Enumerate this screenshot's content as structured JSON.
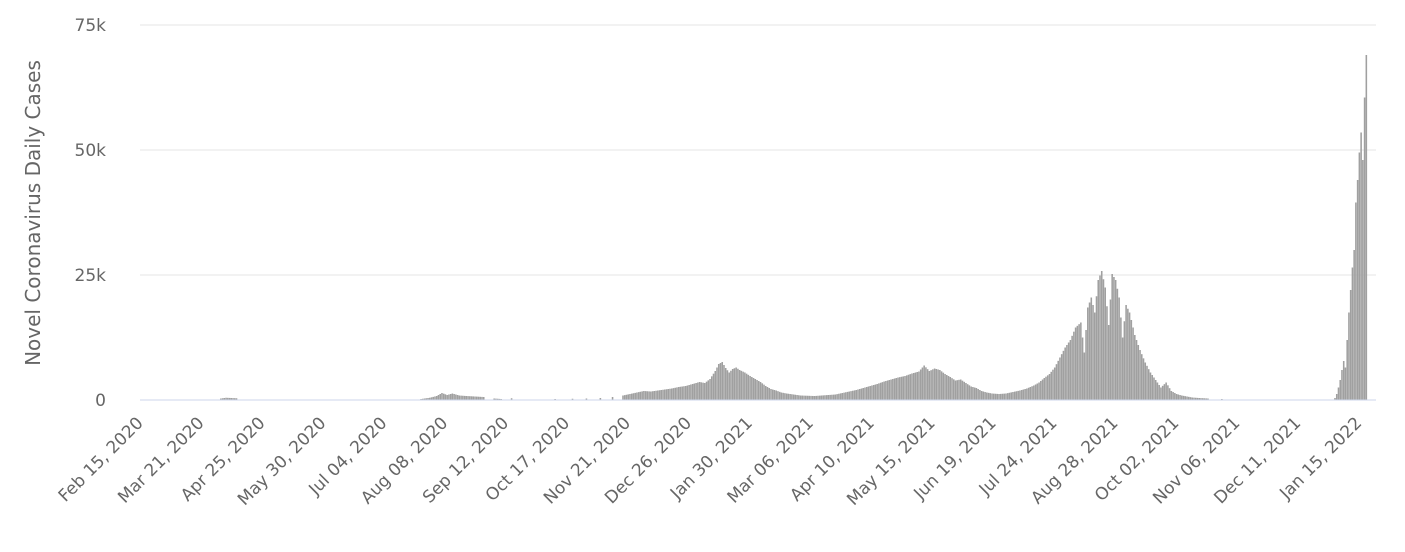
{
  "chart_data": {
    "type": "bar",
    "title": "",
    "ylabel": "Novel Coronavirus Daily Cases",
    "xlabel": "",
    "ylim": [
      0,
      75000
    ],
    "yticks": [
      {
        "value": 0,
        "label": "0"
      },
      {
        "value": 25000,
        "label": "25k"
      },
      {
        "value": 50000,
        "label": "50k"
      },
      {
        "value": 75000,
        "label": "75k"
      }
    ],
    "x_range": [
      "2020-02-15",
      "2022-01-25"
    ],
    "xticks": [
      {
        "date": "2020-02-15",
        "label": "Feb 15, 2020"
      },
      {
        "date": "2020-03-21",
        "label": "Mar 21, 2020"
      },
      {
        "date": "2020-04-25",
        "label": "Apr 25, 2020"
      },
      {
        "date": "2020-05-30",
        "label": "May 30, 2020"
      },
      {
        "date": "2020-07-04",
        "label": "Jul 04, 2020"
      },
      {
        "date": "2020-08-08",
        "label": "Aug 08, 2020"
      },
      {
        "date": "2020-09-12",
        "label": "Sep 12, 2020"
      },
      {
        "date": "2020-10-17",
        "label": "Oct 17, 2020"
      },
      {
        "date": "2020-11-21",
        "label": "Nov 21, 2020"
      },
      {
        "date": "2020-12-26",
        "label": "Dec 26, 2020"
      },
      {
        "date": "2021-01-30",
        "label": "Jan 30, 2021"
      },
      {
        "date": "2021-03-06",
        "label": "Mar 06, 2021"
      },
      {
        "date": "2021-04-10",
        "label": "Apr 10, 2021"
      },
      {
        "date": "2021-05-15",
        "label": "May 15, 2021"
      },
      {
        "date": "2021-06-19",
        "label": "Jun 19, 2021"
      },
      {
        "date": "2021-07-24",
        "label": "Jul 24, 2021"
      },
      {
        "date": "2021-08-28",
        "label": "Aug 28, 2021"
      },
      {
        "date": "2021-10-02",
        "label": "Oct 02, 2021"
      },
      {
        "date": "2021-11-06",
        "label": "Nov 06, 2021"
      },
      {
        "date": "2021-12-11",
        "label": "Dec 11, 2021"
      },
      {
        "date": "2022-01-15",
        "label": "Jan 15, 2022"
      }
    ],
    "series": [
      {
        "color": "#a0a0a0",
        "points": [
          {
            "date": "2020-04-01",
            "value": 300
          },
          {
            "date": "2020-04-04",
            "value": 450
          },
          {
            "date": "2020-04-07",
            "value": 400
          },
          {
            "date": "2020-04-10",
            "value": 350
          },
          {
            "date": "2020-07-25",
            "value": 200
          },
          {
            "date": "2020-07-30",
            "value": 450
          },
          {
            "date": "2020-08-03",
            "value": 800
          },
          {
            "date": "2020-08-06",
            "value": 1400
          },
          {
            "date": "2020-08-09",
            "value": 1000
          },
          {
            "date": "2020-08-12",
            "value": 1300
          },
          {
            "date": "2020-08-16",
            "value": 900
          },
          {
            "date": "2020-08-20",
            "value": 800
          },
          {
            "date": "2020-08-25",
            "value": 700
          },
          {
            "date": "2020-08-30",
            "value": 600
          },
          {
            "date": "2020-09-05",
            "value": 300
          },
          {
            "date": "2020-09-09",
            "value": 200
          },
          {
            "date": "2020-09-15",
            "value": 350
          },
          {
            "date": "2020-10-10",
            "value": 200
          },
          {
            "date": "2020-10-20",
            "value": 250
          },
          {
            "date": "2020-10-28",
            "value": 300
          },
          {
            "date": "2020-11-05",
            "value": 400
          },
          {
            "date": "2020-11-12",
            "value": 600
          },
          {
            "date": "2020-11-18",
            "value": 900
          },
          {
            "date": "2020-11-22",
            "value": 1200
          },
          {
            "date": "2020-11-26",
            "value": 1500
          },
          {
            "date": "2020-11-30",
            "value": 1800
          },
          {
            "date": "2020-12-04",
            "value": 1700
          },
          {
            "date": "2020-12-08",
            "value": 1900
          },
          {
            "date": "2020-12-12",
            "value": 2100
          },
          {
            "date": "2020-12-16",
            "value": 2300
          },
          {
            "date": "2020-12-20",
            "value": 2600
          },
          {
            "date": "2020-12-24",
            "value": 2800
          },
          {
            "date": "2020-12-28",
            "value": 3200
          },
          {
            "date": "2021-01-01",
            "value": 3600
          },
          {
            "date": "2021-01-04",
            "value": 3400
          },
          {
            "date": "2021-01-07",
            "value": 4200
          },
          {
            "date": "2021-01-10",
            "value": 5800
          },
          {
            "date": "2021-01-12",
            "value": 7200
          },
          {
            "date": "2021-01-14",
            "value": 7600
          },
          {
            "date": "2021-01-16",
            "value": 6400
          },
          {
            "date": "2021-01-18",
            "value": 5500
          },
          {
            "date": "2021-01-20",
            "value": 6200
          },
          {
            "date": "2021-01-22",
            "value": 6500
          },
          {
            "date": "2021-01-24",
            "value": 6000
          },
          {
            "date": "2021-01-27",
            "value": 5500
          },
          {
            "date": "2021-01-30",
            "value": 4800
          },
          {
            "date": "2021-02-02",
            "value": 4200
          },
          {
            "date": "2021-02-05",
            "value": 3600
          },
          {
            "date": "2021-02-08",
            "value": 2800
          },
          {
            "date": "2021-02-11",
            "value": 2200
          },
          {
            "date": "2021-02-14",
            "value": 1900
          },
          {
            "date": "2021-02-17",
            "value": 1500
          },
          {
            "date": "2021-02-20",
            "value": 1300
          },
          {
            "date": "2021-02-24",
            "value": 1100
          },
          {
            "date": "2021-02-28",
            "value": 900
          },
          {
            "date": "2021-03-04",
            "value": 850
          },
          {
            "date": "2021-03-08",
            "value": 800
          },
          {
            "date": "2021-03-12",
            "value": 900
          },
          {
            "date": "2021-03-16",
            "value": 1000
          },
          {
            "date": "2021-03-20",
            "value": 1100
          },
          {
            "date": "2021-03-24",
            "value": 1400
          },
          {
            "date": "2021-03-28",
            "value": 1700
          },
          {
            "date": "2021-04-01",
            "value": 2000
          },
          {
            "date": "2021-04-05",
            "value": 2400
          },
          {
            "date": "2021-04-09",
            "value": 2800
          },
          {
            "date": "2021-04-13",
            "value": 3200
          },
          {
            "date": "2021-04-17",
            "value": 3700
          },
          {
            "date": "2021-04-21",
            "value": 4100
          },
          {
            "date": "2021-04-25",
            "value": 4500
          },
          {
            "date": "2021-04-29",
            "value": 4800
          },
          {
            "date": "2021-05-03",
            "value": 5300
          },
          {
            "date": "2021-05-07",
            "value": 5700
          },
          {
            "date": "2021-05-10",
            "value": 6900
          },
          {
            "date": "2021-05-13",
            "value": 5800
          },
          {
            "date": "2021-05-16",
            "value": 6300
          },
          {
            "date": "2021-05-19",
            "value": 6000
          },
          {
            "date": "2021-05-22",
            "value": 5200
          },
          {
            "date": "2021-05-25",
            "value": 4600
          },
          {
            "date": "2021-05-28",
            "value": 3900
          },
          {
            "date": "2021-05-31",
            "value": 4100
          },
          {
            "date": "2021-06-03",
            "value": 3400
          },
          {
            "date": "2021-06-06",
            "value": 2700
          },
          {
            "date": "2021-06-09",
            "value": 2400
          },
          {
            "date": "2021-06-12",
            "value": 1800
          },
          {
            "date": "2021-06-15",
            "value": 1500
          },
          {
            "date": "2021-06-18",
            "value": 1300
          },
          {
            "date": "2021-06-22",
            "value": 1200
          },
          {
            "date": "2021-06-26",
            "value": 1300
          },
          {
            "date": "2021-06-30",
            "value": 1600
          },
          {
            "date": "2021-07-04",
            "value": 1900
          },
          {
            "date": "2021-07-08",
            "value": 2300
          },
          {
            "date": "2021-07-12",
            "value": 2900
          },
          {
            "date": "2021-07-15",
            "value": 3500
          },
          {
            "date": "2021-07-18",
            "value": 4400
          },
          {
            "date": "2021-07-21",
            "value": 5200
          },
          {
            "date": "2021-07-24",
            "value": 6500
          },
          {
            "date": "2021-07-27",
            "value": 8500
          },
          {
            "date": "2021-07-30",
            "value": 10500
          },
          {
            "date": "2021-08-02",
            "value": 12000
          },
          {
            "date": "2021-08-05",
            "value": 14500
          },
          {
            "date": "2021-08-08",
            "value": 15500
          },
          {
            "date": "2021-08-10",
            "value": 9500
          },
          {
            "date": "2021-08-12",
            "value": 18500
          },
          {
            "date": "2021-08-14",
            "value": 20500
          },
          {
            "date": "2021-08-16",
            "value": 17500
          },
          {
            "date": "2021-08-18",
            "value": 24000
          },
          {
            "date": "2021-08-20",
            "value": 25800
          },
          {
            "date": "2021-08-22",
            "value": 22500
          },
          {
            "date": "2021-08-24",
            "value": 15000
          },
          {
            "date": "2021-08-26",
            "value": 25200
          },
          {
            "date": "2021-08-28",
            "value": 24000
          },
          {
            "date": "2021-08-30",
            "value": 20500
          },
          {
            "date": "2021-09-01",
            "value": 12500
          },
          {
            "date": "2021-09-03",
            "value": 19000
          },
          {
            "date": "2021-09-05",
            "value": 17500
          },
          {
            "date": "2021-09-08",
            "value": 13000
          },
          {
            "date": "2021-09-11",
            "value": 10000
          },
          {
            "date": "2021-09-14",
            "value": 7500
          },
          {
            "date": "2021-09-17",
            "value": 5500
          },
          {
            "date": "2021-09-20",
            "value": 4000
          },
          {
            "date": "2021-09-23",
            "value": 2500
          },
          {
            "date": "2021-09-26",
            "value": 3500
          },
          {
            "date": "2021-09-29",
            "value": 1800
          },
          {
            "date": "2021-10-02",
            "value": 1200
          },
          {
            "date": "2021-10-05",
            "value": 900
          },
          {
            "date": "2021-10-08",
            "value": 700
          },
          {
            "date": "2021-10-11",
            "value": 500
          },
          {
            "date": "2021-10-15",
            "value": 400
          },
          {
            "date": "2021-10-20",
            "value": 300
          },
          {
            "date": "2021-10-28",
            "value": 200
          },
          {
            "date": "2021-11-10",
            "value": 100
          },
          {
            "date": "2021-12-10",
            "value": 100
          },
          {
            "date": "2022-01-01",
            "value": 400
          },
          {
            "date": "2022-01-02",
            "value": 1200
          },
          {
            "date": "2022-01-03",
            "value": 2500
          },
          {
            "date": "2022-01-04",
            "value": 4000
          },
          {
            "date": "2022-01-05",
            "value": 6000
          },
          {
            "date": "2022-01-06",
            "value": 7800
          },
          {
            "date": "2022-01-07",
            "value": 6500
          },
          {
            "date": "2022-01-08",
            "value": 12000
          },
          {
            "date": "2022-01-09",
            "value": 17500
          },
          {
            "date": "2022-01-10",
            "value": 22000
          },
          {
            "date": "2022-01-11",
            "value": 26500
          },
          {
            "date": "2022-01-12",
            "value": 30000
          },
          {
            "date": "2022-01-13",
            "value": 39500
          },
          {
            "date": "2022-01-14",
            "value": 44000
          },
          {
            "date": "2022-01-15",
            "value": 49500
          },
          {
            "date": "2022-01-16",
            "value": 53500
          },
          {
            "date": "2022-01-17",
            "value": 48000
          },
          {
            "date": "2022-01-18",
            "value": 60500
          },
          {
            "date": "2022-01-19",
            "value": 69000
          }
        ]
      }
    ],
    "grid": true,
    "legend": "none"
  }
}
